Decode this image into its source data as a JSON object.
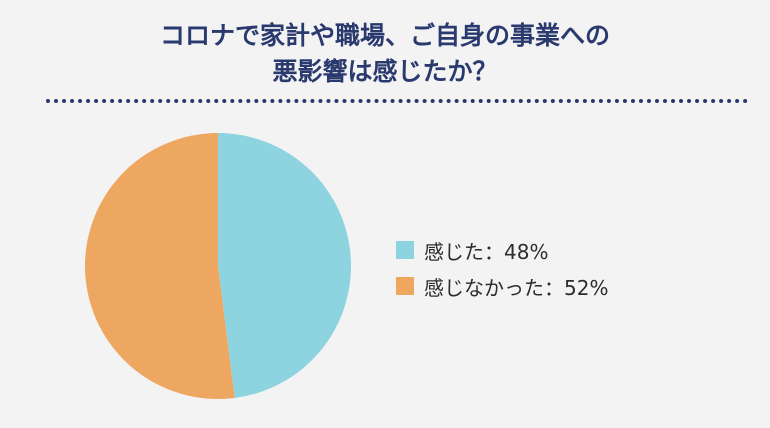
{
  "title": {
    "line1": "コロナで家計や職場、ご自身の事業への",
    "line2": "悪影響は感じたか？"
  },
  "legend": [
    {
      "label": "感じた：48%",
      "color": "#8dd3e0"
    },
    {
      "label": "感じなかった：52%",
      "color": "#eea761"
    }
  ],
  "chart_data": {
    "type": "pie",
    "title": "コロナで家計や職場、ご自身の事業への悪影響は感じたか？",
    "categories": [
      "感じた",
      "感じなかった"
    ],
    "values": [
      48,
      52
    ],
    "unit": "%",
    "colors": [
      "#8dd3e0",
      "#eea761"
    ],
    "legend_position": "right"
  }
}
